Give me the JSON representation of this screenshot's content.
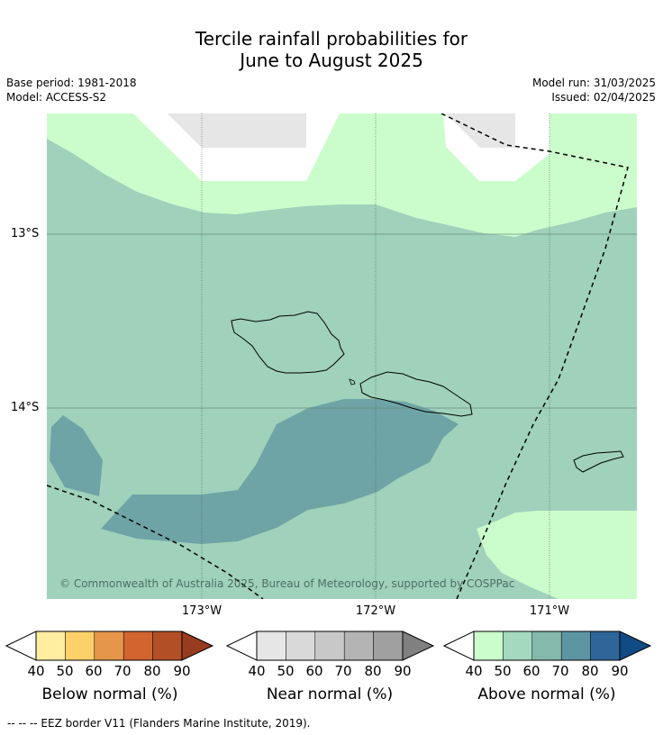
{
  "title_line1": "Tercile rainfall probabilities for",
  "title_line2": "June to August 2025",
  "base_period": "Base period: 1981-2018",
  "model": "Model: ACCESS-S2",
  "model_run": "Model run: 31/03/2025",
  "issued": "Issued: 02/04/2025",
  "map": {
    "lat_labels": [
      "13°S",
      "14°S"
    ],
    "lon_labels": [
      "173°W",
      "172°W",
      "171°W"
    ],
    "copyright": "© Commonwealth of Australia 2025, Bureau of Meteorology, supported by COSPPac",
    "colors": {
      "above_50": "#cbfccb",
      "above_60": "#9fd1bb",
      "above_70": "#6ea4a5",
      "near_40": "#e6e6e6",
      "white": "#ffffff"
    }
  },
  "colorbars": [
    {
      "name": "below",
      "title": "Below normal (%)",
      "ticks": [
        "40",
        "50",
        "60",
        "70",
        "80",
        "90"
      ],
      "colors": [
        "#ffeda0",
        "#fed06a",
        "#e5964b",
        "#d1642f",
        "#b24f26",
        "#973c1f"
      ]
    },
    {
      "name": "near",
      "title": "Near normal (%)",
      "ticks": [
        "40",
        "50",
        "60",
        "70",
        "80",
        "90"
      ],
      "colors": [
        "#e6e6e6",
        "#d9d9d9",
        "#c8c8c8",
        "#b4b4b4",
        "#a0a0a0",
        "#808080"
      ]
    },
    {
      "name": "above",
      "title": "Above normal (%)",
      "ticks": [
        "40",
        "50",
        "60",
        "70",
        "80",
        "90"
      ],
      "colors": [
        "#cbfccb",
        "#a4d9bf",
        "#84b9ab",
        "#5d96a2",
        "#2f6699",
        "#114b85"
      ]
    }
  ],
  "footer": "--  --  -- EEZ border V11 (Flanders Marine Institute, 2019)."
}
